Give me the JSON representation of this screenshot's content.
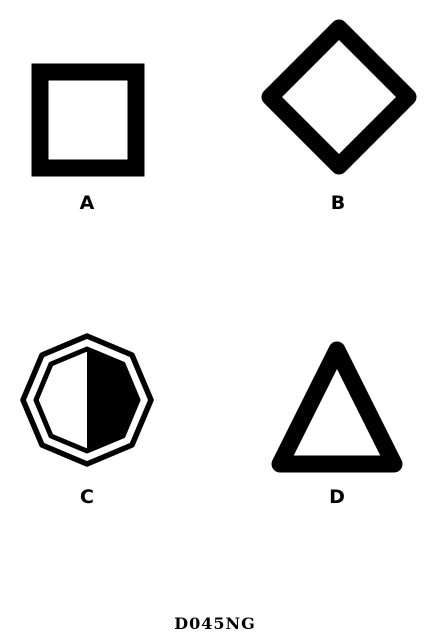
{
  "symbols": [
    {
      "shape": "square",
      "label": "A"
    },
    {
      "shape": "diamond",
      "label": "B"
    },
    {
      "shape": "octagon-half-filled",
      "label": "C"
    },
    {
      "shape": "triangle",
      "label": "D"
    }
  ],
  "figure_code": "D045NG",
  "colors": {
    "ink": "#000000",
    "paper": "#ffffff"
  }
}
